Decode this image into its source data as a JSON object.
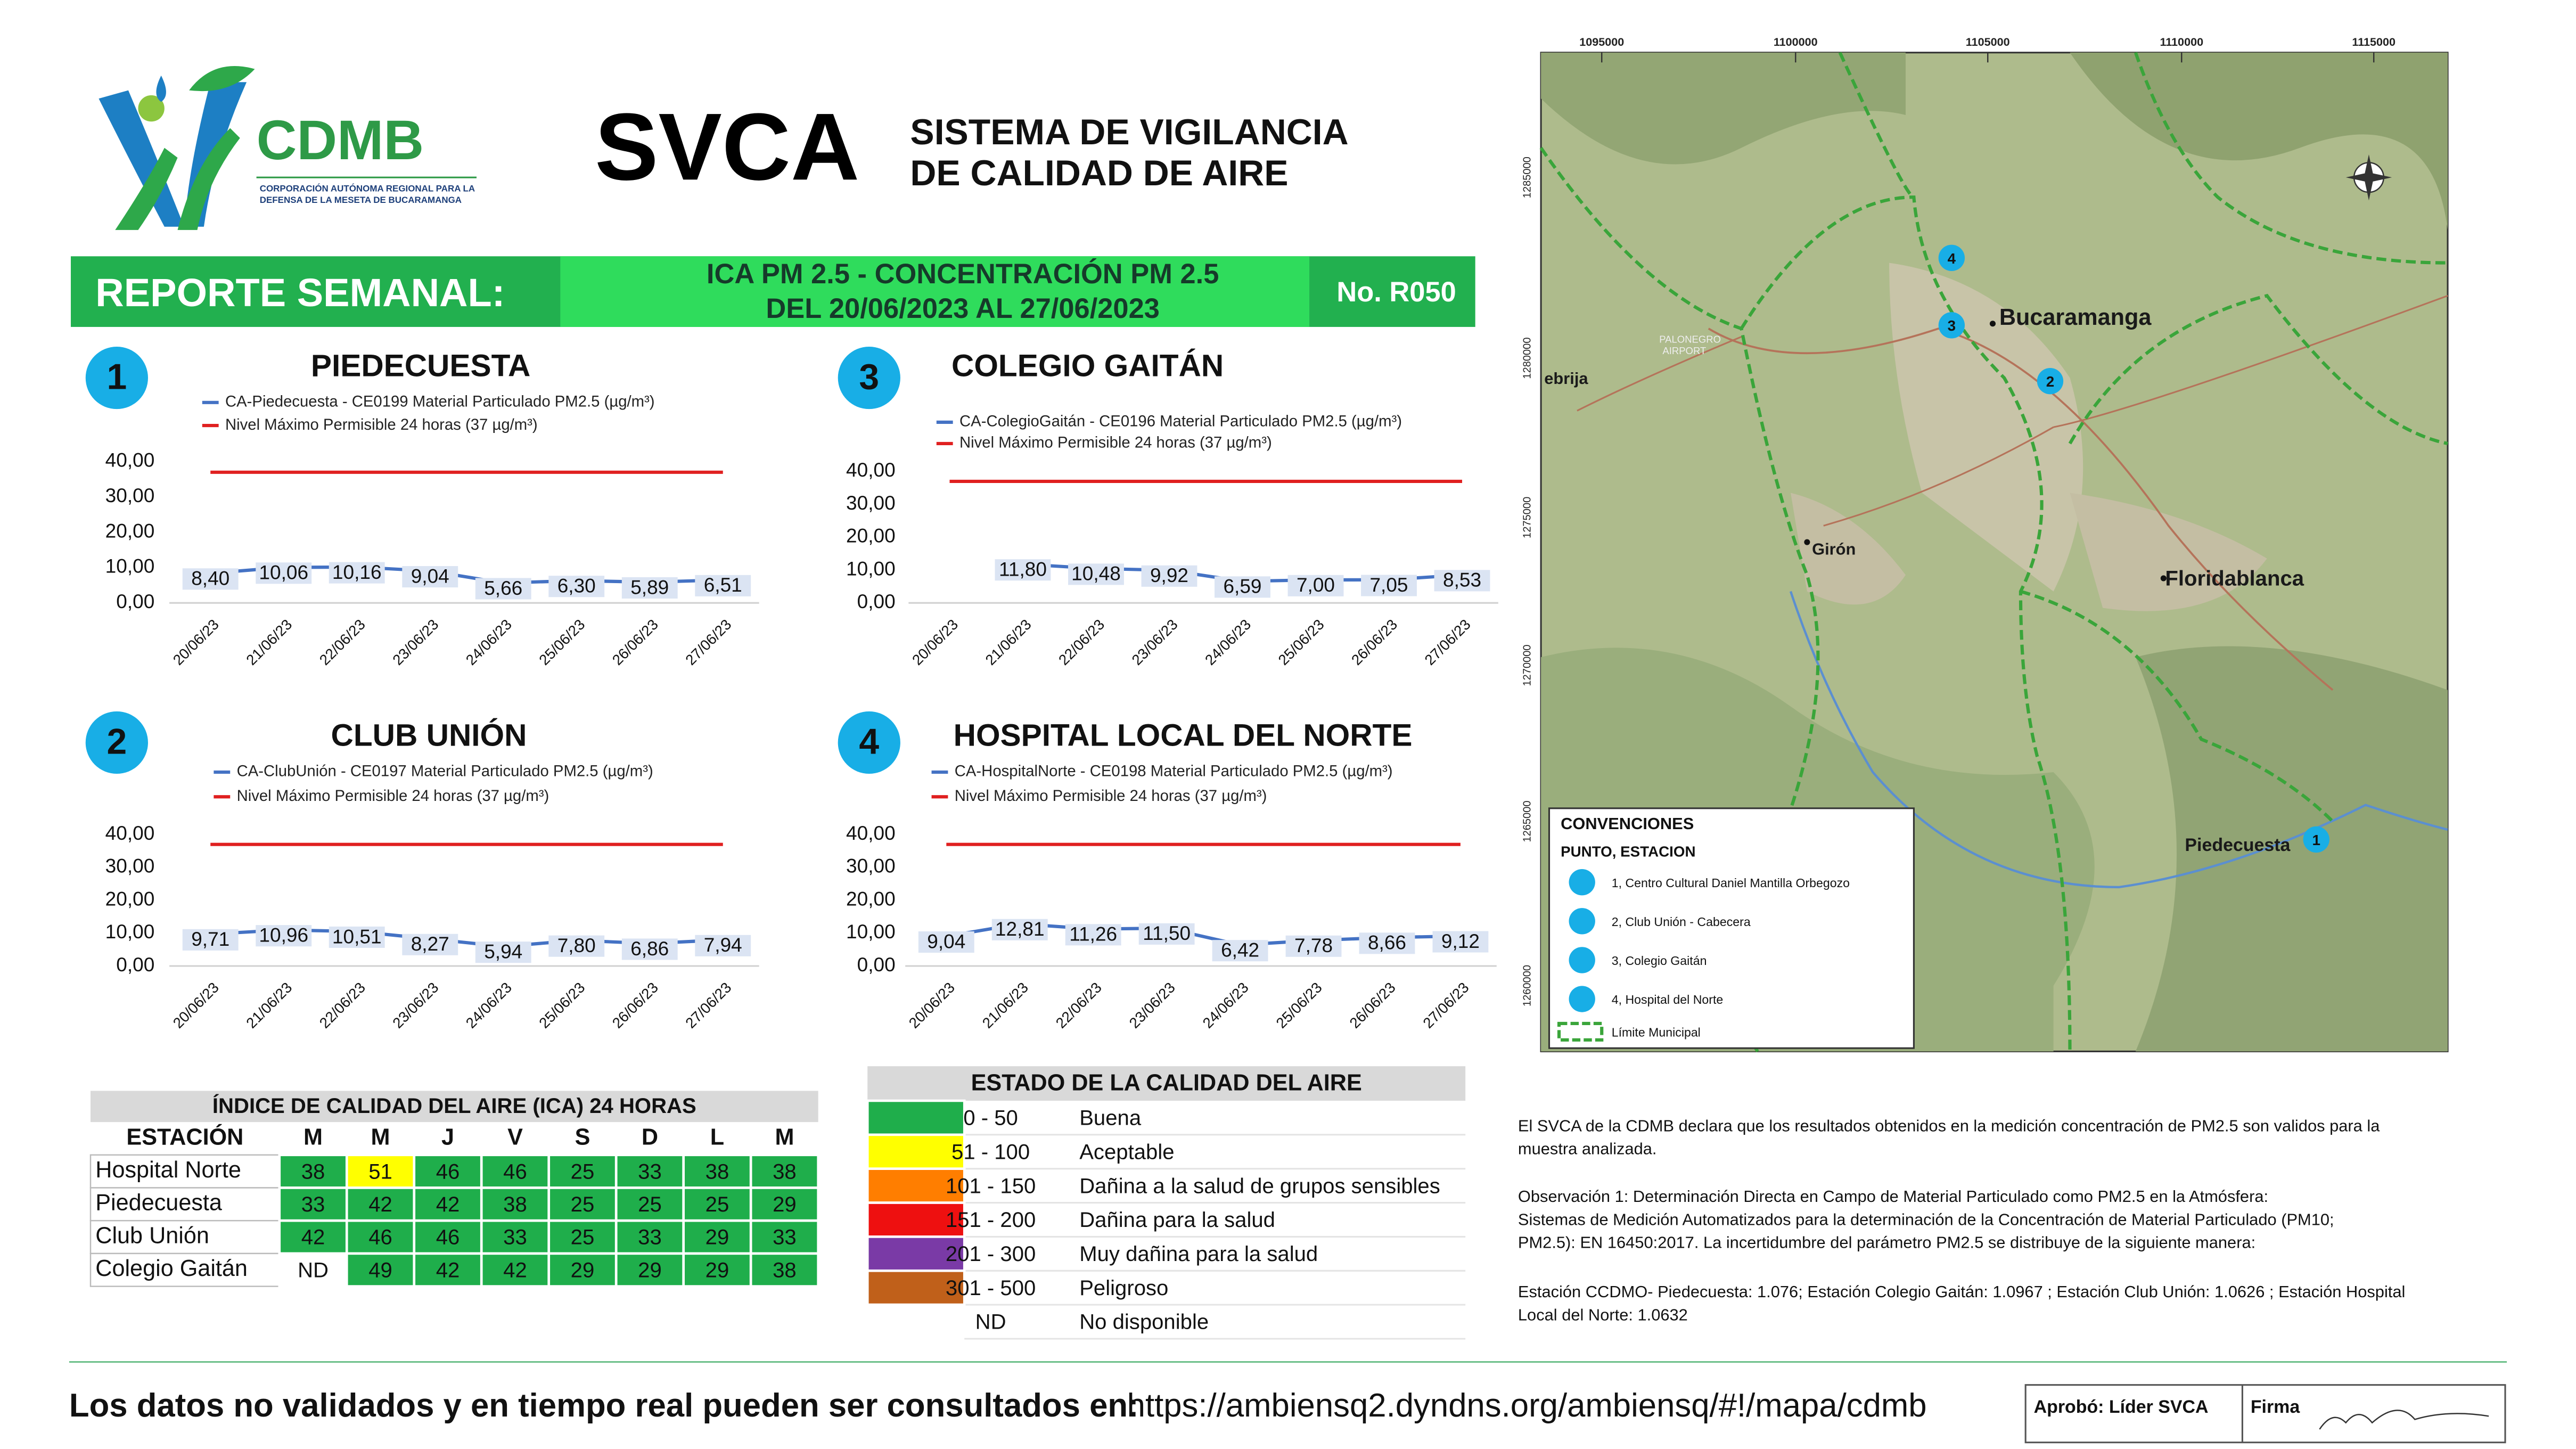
{
  "header": {
    "org": "CDMB",
    "org_subtitle": [
      "CORPORACIÓN AUTÓNOMA REGIONAL PARA LA",
      "DEFENSA DE LA MESETA DE BUCARAMANGA"
    ],
    "title": "SVCA",
    "subtitle": [
      "SISTEMA DE VIGILANCIA",
      "DE CALIDAD DE AIRE"
    ]
  },
  "banner": {
    "label": "REPORTE SEMANAL:",
    "topic": [
      "ICA PM 2.5 - CONCENTRACIÓN PM 2.5",
      "DEL 20/06/2023 AL 27/06/2023"
    ],
    "number": "No. R050"
  },
  "chart_data": [
    {
      "type": "line",
      "number": "1",
      "title": "PIEDECUESTA",
      "categories": [
        "20/06/23",
        "21/06/23",
        "22/06/23",
        "23/06/23",
        "24/06/23",
        "25/06/23",
        "26/06/23",
        "27/06/23"
      ],
      "series": [
        {
          "name": "CA-Piedecuesta - CE0199 Material Particulado PM2.5 (µg/m³)",
          "color": "#4472c4",
          "values": [
            8.4,
            10.06,
            10.16,
            9.04,
            5.66,
            6.3,
            5.89,
            6.51
          ],
          "value_labels": [
            "8,40",
            "10,06",
            "10,16",
            "9,04",
            "5,66",
            "6,30",
            "5,89",
            "6,51"
          ]
        },
        {
          "name": "Nivel Máximo Permisible 24 horas (37 µg/m³)",
          "color": "#e02020",
          "values": [
            37,
            37,
            37,
            37,
            37,
            37,
            37,
            37
          ]
        }
      ],
      "ylim": [
        0,
        40
      ],
      "yticks": [
        {
          "value": 0,
          "label": "0,00"
        },
        {
          "value": 10,
          "label": "10,00"
        },
        {
          "value": 20,
          "label": "20,00"
        },
        {
          "value": 30,
          "label": "30,00"
        },
        {
          "value": 40,
          "label": "40,00"
        }
      ],
      "grid": false
    },
    {
      "type": "line",
      "number": "3",
      "title": "COLEGIO GAITÁN",
      "categories": [
        "20/06/23",
        "21/06/23",
        "22/06/23",
        "23/06/23",
        "24/06/23",
        "25/06/23",
        "26/06/23",
        "27/06/23"
      ],
      "series": [
        {
          "name": "CA-ColegioGaitán  - CE0196 Material Particulado PM2.5 (µg/m³)",
          "color": "#4472c4",
          "values": [
            null,
            11.8,
            10.48,
            9.92,
            6.59,
            7.0,
            7.05,
            8.53
          ],
          "value_labels": [
            null,
            "11,80",
            "10,48",
            "9,92",
            "6,59",
            "7,00",
            "7,05",
            "8,53"
          ]
        },
        {
          "name": "Nivel Máximo Permisible 24 horas (37 µg/m³)",
          "color": "#e02020",
          "values": [
            37,
            37,
            37,
            37,
            37,
            37,
            37,
            37
          ]
        }
      ],
      "ylim": [
        0,
        40
      ],
      "yticks": [
        {
          "value": 0,
          "label": "0,00"
        },
        {
          "value": 10,
          "label": "10,00"
        },
        {
          "value": 20,
          "label": "20,00"
        },
        {
          "value": 30,
          "label": "30,00"
        },
        {
          "value": 40,
          "label": "40,00"
        }
      ],
      "grid": false
    },
    {
      "type": "line",
      "number": "2",
      "title": "CLUB UNIÓN",
      "categories": [
        "20/06/23",
        "21/06/23",
        "22/06/23",
        "23/06/23",
        "24/06/23",
        "25/06/23",
        "26/06/23",
        "27/06/23"
      ],
      "series": [
        {
          "name": "CA-ClubUnión - CE0197 Material Particulado PM2.5 (µg/m³)",
          "color": "#4472c4",
          "values": [
            9.71,
            10.96,
            10.51,
            8.27,
            5.94,
            7.8,
            6.86,
            7.94
          ],
          "value_labels": [
            "9,71",
            "10,96",
            "10,51",
            "8,27",
            "5,94",
            "7,80",
            "6,86",
            "7,94"
          ]
        },
        {
          "name": "Nivel Máximo Permisible 24 horas (37 µg/m³)",
          "color": "#e02020",
          "values": [
            37,
            37,
            37,
            37,
            37,
            37,
            37,
            37
          ]
        }
      ],
      "ylim": [
        0,
        40
      ],
      "yticks": [
        {
          "value": 0,
          "label": "0,00"
        },
        {
          "value": 10,
          "label": "10,00"
        },
        {
          "value": 20,
          "label": "20,00"
        },
        {
          "value": 30,
          "label": "30,00"
        },
        {
          "value": 40,
          "label": "40,00"
        }
      ],
      "grid": false
    },
    {
      "type": "line",
      "number": "4",
      "title": "HOSPITAL LOCAL DEL NORTE",
      "categories": [
        "20/06/23",
        "21/06/23",
        "22/06/23",
        "23/06/23",
        "24/06/23",
        "25/06/23",
        "26/06/23",
        "27/06/23"
      ],
      "series": [
        {
          "name": "CA-HospitalNorte - CE0198 Material Particulado PM2.5 (µg/m³)",
          "color": "#4472c4",
          "values": [
            9.04,
            12.81,
            11.26,
            11.5,
            6.42,
            7.78,
            8.66,
            9.12
          ],
          "value_labels": [
            "9,04",
            "12,81",
            "11,26",
            "11,50",
            "6,42",
            "7,78",
            "8,66",
            "9,12"
          ]
        },
        {
          "name": "Nivel Máximo Permisible 24 horas (37 µg/m³)",
          "color": "#e02020",
          "values": [
            37,
            37,
            37,
            37,
            37,
            37,
            37,
            37
          ]
        }
      ],
      "ylim": [
        0,
        40
      ],
      "yticks": [
        {
          "value": 0,
          "label": "0,00"
        },
        {
          "value": 10,
          "label": "10,00"
        },
        {
          "value": 20,
          "label": "20,00"
        },
        {
          "value": 30,
          "label": "30,00"
        },
        {
          "value": 40,
          "label": "40,00"
        }
      ],
      "grid": false
    }
  ],
  "ica_table": {
    "title": "ÍNDICE DE CALIDAD DEL AIRE (ICA) 24 HORAS",
    "header": [
      "ESTACIÓN",
      "M",
      "M",
      "J",
      "V",
      "S",
      "D",
      "L",
      "M"
    ],
    "rows": [
      [
        "Hospital Norte",
        38,
        51,
        46,
        46,
        25,
        33,
        38,
        38
      ],
      [
        "Piedecuesta",
        33,
        42,
        42,
        38,
        25,
        25,
        25,
        29
      ],
      [
        "Club Unión",
        42,
        46,
        46,
        33,
        25,
        33,
        29,
        33
      ],
      [
        "Colegio Gaitán",
        "ND",
        49,
        42,
        42,
        29,
        29,
        29,
        38
      ]
    ],
    "cell_colors": [
      [
        "#1fae4b",
        "#ffff00",
        "#1fae4b",
        "#1fae4b",
        "#1fae4b",
        "#1fae4b",
        "#1fae4b",
        "#1fae4b"
      ],
      [
        "#1fae4b",
        "#1fae4b",
        "#1fae4b",
        "#1fae4b",
        "#1fae4b",
        "#1fae4b",
        "#1fae4b",
        "#1fae4b"
      ],
      [
        "#1fae4b",
        "#1fae4b",
        "#1fae4b",
        "#1fae4b",
        "#1fae4b",
        "#1fae4b",
        "#1fae4b",
        "#1fae4b"
      ],
      [
        "#ffffff",
        "#1fae4b",
        "#1fae4b",
        "#1fae4b",
        "#1fae4b",
        "#1fae4b",
        "#1fae4b",
        "#1fae4b"
      ]
    ]
  },
  "status_table": {
    "title": "ESTADO DE LA CALIDAD DEL AIRE",
    "rows": [
      {
        "color": "#1fae4b",
        "range": "0 - 50",
        "label": "Buena"
      },
      {
        "color": "#ffff00",
        "range": "51 - 100",
        "label": "Aceptable"
      },
      {
        "color": "#ff7e00",
        "range": "101 - 150",
        "label": "Dañina a la salud de grupos sensibles"
      },
      {
        "color": "#ee1010",
        "range": "151 - 200",
        "label": "Dañina para la salud"
      },
      {
        "color": "#7a3aa6",
        "range": "201 - 300",
        "label": "Muy dañina para la salud"
      },
      {
        "color": "#c0601a",
        "range": "301 - 500",
        "label": "Peligroso"
      },
      {
        "color": "#ffffff",
        "range": "ND",
        "label": "No disponible"
      }
    ]
  },
  "map": {
    "x_ticks": [
      "1095000",
      "1100000",
      "1105000",
      "1110000",
      "1115000"
    ],
    "y_ticks": [
      "1285000",
      "1280000",
      "1275000",
      "1270000",
      "1265000",
      "1260000"
    ],
    "places": [
      "Bucaramanga",
      "Floridablanca",
      "Girón",
      "Piedecuesta",
      "ebrija",
      "PALONEGRO",
      "AIRPORT"
    ],
    "stations": [
      "1",
      "2",
      "3",
      "4"
    ],
    "legend": {
      "title": "CONVENCIONES",
      "subtitle": "PUNTO, ESTACION",
      "items": [
        "1, Centro Cultural Daniel Mantilla Orbegozo",
        "2, Club Unión - Cabecera",
        "3, Colegio Gaitán",
        "4, Hospital del Norte"
      ],
      "boundary": "Límite Municipal"
    }
  },
  "notes": [
    [
      "El SVCA  de la CDMB declara que los resultados obtenidos en la medición concentración de PM2.5 son validos para la",
      "muestra  analizada."
    ],
    [
      "Observación 1: Determinación Directa en Campo de Material Particulado como PM2.5 en la Atmósfera:",
      "Sistemas de Medición Automatizados para la  determinación de la Concentración de Material Particulado (PM10;",
      "PM2.5): EN 16450:2017. La incertidumbre del parámetro PM2.5 se distribuye de la siguiente manera:"
    ],
    [
      "Estación CCDMO- Piedecuesta: 1.076; Estación Colegio Gaitán: 1.0967 ; Estación Club Unión: 1.0626 ; Estación Hospital",
      "Local del Norte: 1.0632"
    ]
  ],
  "footer": {
    "lead": "Los datos no validados y en tiempo real pueden ser consultados en:",
    "url": "https://ambiensq2.dyndns.org/ambiensq/#!/mapa/cdmb",
    "approval": "Aprobó: Líder SVCA",
    "signature": "Firma"
  }
}
